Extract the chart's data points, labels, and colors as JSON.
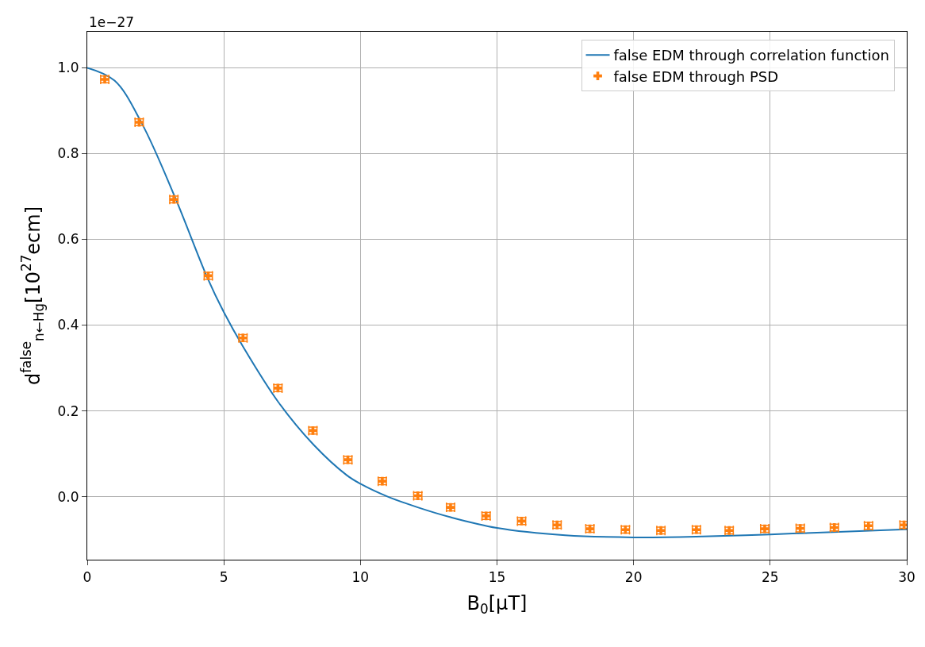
{
  "chart_data": {
    "type": "scatter",
    "xlabel": "B$_{0}$[μT]",
    "ylabel": "d$^{false}$$_{n←Hg}$[10$^{27}$ecm]",
    "annotations": [
      "1e−27"
    ],
    "xlim": [
      0,
      30
    ],
    "xticks": [
      0,
      5,
      10,
      15,
      20,
      25,
      30
    ],
    "ylim": [
      -0.147,
      1.084
    ],
    "yticks": [
      {
        "value": 0,
        "label": "0.0"
      },
      0.2,
      0.4,
      0.6,
      0.8,
      {
        "value": 1,
        "label": "1.0"
      }
    ],
    "grid": true,
    "legend": "top right",
    "series": [
      {
        "name": "false EDM through correlation function",
        "type": "line",
        "color": "#1f77b4",
        "marker": "none",
        "line_style": "solid",
        "x": [
          0,
          1,
          2,
          3.2,
          4.4,
          5,
          5.7,
          7,
          8.3,
          9.5,
          10,
          11,
          12.1,
          13.3,
          15,
          17.5,
          20,
          22.5,
          25,
          27.5,
          30
        ],
        "values": [
          1.0,
          0.97,
          0.87,
          0.7,
          0.51,
          0.43,
          0.35,
          0.22,
          0.12,
          0.05,
          0.03,
          0.0,
          -0.025,
          -0.048,
          -0.073,
          -0.09,
          -0.095,
          -0.093,
          -0.088,
          -0.082,
          -0.076
        ]
      },
      {
        "name": "false EDM through PSD",
        "color": "#ff7f0e",
        "marker": "cross",
        "x": [
          0.64,
          1.9,
          3.17,
          4.43,
          5.7,
          6.98,
          8.26,
          9.54,
          10.8,
          12.1,
          13.3,
          14.6,
          15.9,
          17.2,
          18.4,
          19.7,
          21.0,
          22.3,
          23.5,
          24.8,
          26.1,
          27.35,
          28.6,
          29.9
        ],
        "values": [
          0.973,
          0.873,
          0.693,
          0.515,
          0.37,
          0.253,
          0.154,
          0.086,
          0.036,
          0.002,
          -0.025,
          -0.045,
          -0.057,
          -0.066,
          -0.075,
          -0.077,
          -0.079,
          -0.077,
          -0.079,
          -0.075,
          -0.074,
          -0.072,
          -0.068,
          -0.066
        ],
        "errors": [
          0.008,
          0.008,
          0.008,
          0.008,
          0.008,
          0.008,
          0.008,
          0.008,
          0.008,
          0.008,
          0.008,
          0.008,
          0.008,
          0.008,
          0.008,
          0.008,
          0.008,
          0.008,
          0.008,
          0.008,
          0.008,
          0.008,
          0.008,
          0.008
        ],
        "xerrors": [
          0.15,
          0.15,
          0.15,
          0.15,
          0.15,
          0.15,
          0.15,
          0.15,
          0.15,
          0.15,
          0.15,
          0.15,
          0.15,
          0.15,
          0.15,
          0.15,
          0.15,
          0.15,
          0.15,
          0.15,
          0.15,
          0.15,
          0.15,
          0.15
        ]
      }
    ]
  }
}
